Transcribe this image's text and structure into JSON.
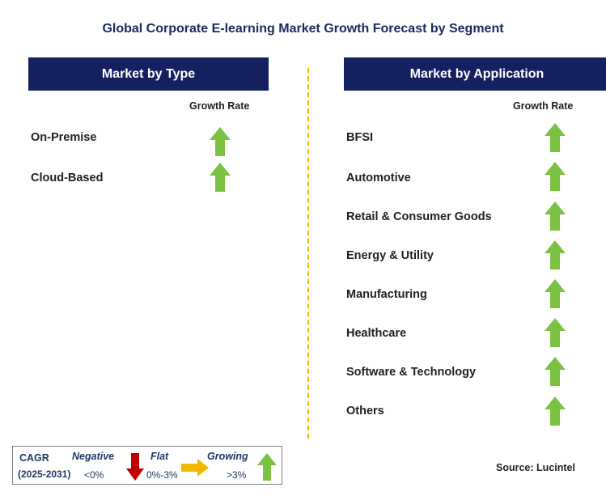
{
  "title": "Global Corporate E-learning Market Growth Forecast by Segment",
  "left_panel": {
    "header": "Market by Type",
    "column_header": "Growth Rate",
    "rows": [
      {
        "label": "On-Premise",
        "trend": "growing"
      },
      {
        "label": "Cloud-Based",
        "trend": "growing"
      }
    ]
  },
  "right_panel": {
    "header": "Market by Application",
    "column_header": "Growth Rate",
    "rows": [
      {
        "label": "BFSI",
        "trend": "growing"
      },
      {
        "label": "Automotive",
        "trend": "growing"
      },
      {
        "label": "Retail & Consumer Goods",
        "trend": "growing"
      },
      {
        "label": "Energy & Utility",
        "trend": "growing"
      },
      {
        "label": "Manufacturing",
        "trend": "growing"
      },
      {
        "label": "Healthcare",
        "trend": "growing"
      },
      {
        "label": "Software & Technology",
        "trend": "growing"
      },
      {
        "label": "Others",
        "trend": "growing"
      }
    ]
  },
  "legend": {
    "cagr_label": "CAGR",
    "period": "(2025-2031)",
    "negative_label": "Negative",
    "negative_range": "<0%",
    "flat_label": "Flat",
    "flat_range": "0%-3%",
    "growing_label": "Growing",
    "growing_range": ">3%"
  },
  "source": "Source: Lucintel",
  "colors": {
    "header_bg": "#142060",
    "divider": "#f0b400",
    "growing_arrow": "#7cc242",
    "negative_arrow": "#c00000",
    "flat_arrow": "#f5b800"
  }
}
